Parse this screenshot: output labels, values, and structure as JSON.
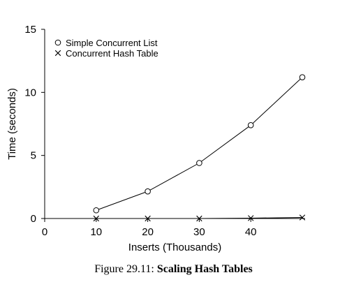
{
  "chart_data": {
    "type": "line",
    "title": "",
    "xlabel": "Inserts (Thousands)",
    "ylabel": "Time (seconds)",
    "xlim": [
      0,
      50
    ],
    "ylim": [
      0,
      15
    ],
    "x_ticks": [
      0,
      10,
      20,
      30,
      40
    ],
    "y_ticks": [
      0,
      5,
      10,
      15
    ],
    "grid": false,
    "legend_position": "top-left",
    "series": [
      {
        "name": "Simple Concurrent List",
        "marker": "circle",
        "x": [
          10,
          20,
          30,
          40,
          50
        ],
        "values": [
          0.65,
          2.15,
          4.4,
          7.4,
          11.2
        ]
      },
      {
        "name": "Concurrent Hash Table",
        "marker": "x",
        "x": [
          10,
          20,
          30,
          40,
          50
        ],
        "values": [
          0.0,
          0.0,
          0.0,
          0.03,
          0.08
        ]
      }
    ]
  },
  "caption": {
    "label": "Figure 29.11:",
    "title": "Scaling Hash Tables"
  }
}
